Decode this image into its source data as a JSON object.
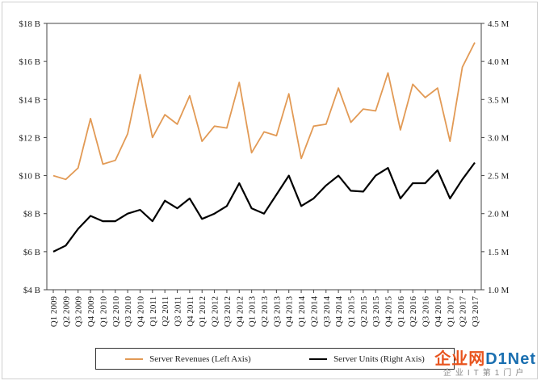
{
  "chart_data": {
    "type": "line",
    "title": "",
    "categories": [
      "Q1 2009",
      "Q2 2009",
      "Q3 2009",
      "Q4 2009",
      "Q1 2010",
      "Q2 2010",
      "Q3 2010",
      "Q4 2010",
      "Q1 2011",
      "Q2 2011",
      "Q3 2011",
      "Q4 2011",
      "Q1 2012",
      "Q2 2012",
      "Q3 2012",
      "Q4 2012",
      "Q1 2013",
      "Q2 2013",
      "Q3 2013",
      "Q4 2013",
      "Q1 2014",
      "Q2 2014",
      "Q3 2014",
      "Q4 2014",
      "Q1 2015",
      "Q2 2015",
      "Q3 2015",
      "Q4 2015",
      "Q1 2016",
      "Q2 2016",
      "Q3 2016",
      "Q4 2016",
      "Q1 2017",
      "Q2 2017",
      "Q3 2017"
    ],
    "series": [
      {
        "name": "Server Revenues (Left Axis)",
        "axis": "left",
        "color": "#e29a55",
        "values": [
          10.0,
          9.8,
          10.4,
          13.0,
          10.6,
          10.8,
          12.2,
          15.3,
          12.0,
          13.2,
          12.7,
          14.2,
          11.8,
          12.6,
          12.5,
          14.9,
          11.2,
          12.3,
          12.1,
          14.3,
          10.9,
          12.6,
          12.7,
          14.6,
          12.8,
          13.5,
          13.4,
          15.4,
          12.4,
          14.8,
          14.1,
          14.6,
          11.8,
          15.7,
          17.0
        ]
      },
      {
        "name": "Server Units (Right Axis)",
        "axis": "right",
        "color": "#000000",
        "values": [
          1.5,
          1.58,
          1.8,
          1.97,
          1.9,
          1.9,
          2.0,
          2.05,
          1.9,
          2.17,
          2.07,
          2.2,
          1.93,
          2.0,
          2.1,
          2.4,
          2.07,
          2.0,
          2.25,
          2.5,
          2.1,
          2.2,
          2.37,
          2.5,
          2.3,
          2.29,
          2.5,
          2.6,
          2.2,
          2.4,
          2.4,
          2.57,
          2.2,
          2.45,
          2.67
        ]
      }
    ],
    "left_axis": {
      "ylim": [
        4,
        18
      ],
      "ticks": [
        4,
        6,
        8,
        10,
        12,
        14,
        16,
        18
      ],
      "tick_labels": [
        "$4 B",
        "$6 B",
        "$8 B",
        "$10 B",
        "$12 B",
        "$14 B",
        "$16 B",
        "$18 B"
      ]
    },
    "right_axis": {
      "ylim": [
        1.0,
        4.5
      ],
      "ticks": [
        1.0,
        1.5,
        2.0,
        2.5,
        3.0,
        3.5,
        4.0,
        4.5
      ],
      "tick_labels": [
        "1.0 M",
        "1.5 M",
        "2.0 M",
        "2.5 M",
        "3.0 M",
        "3.5 M",
        "4.0 M",
        "4.5 M"
      ]
    },
    "grid": false,
    "legend_position": "bottom"
  },
  "legend": {
    "revenue_label": "Server Revenues (Left Axis)",
    "units_label": "Server Units (Right Axis)"
  },
  "watermark": {
    "main_left": "企业网",
    "main_right": "D1Net",
    "sub": "企业IT第1门户",
    "color_main": "#e8541e",
    "color_net": "#1a6fb0"
  }
}
